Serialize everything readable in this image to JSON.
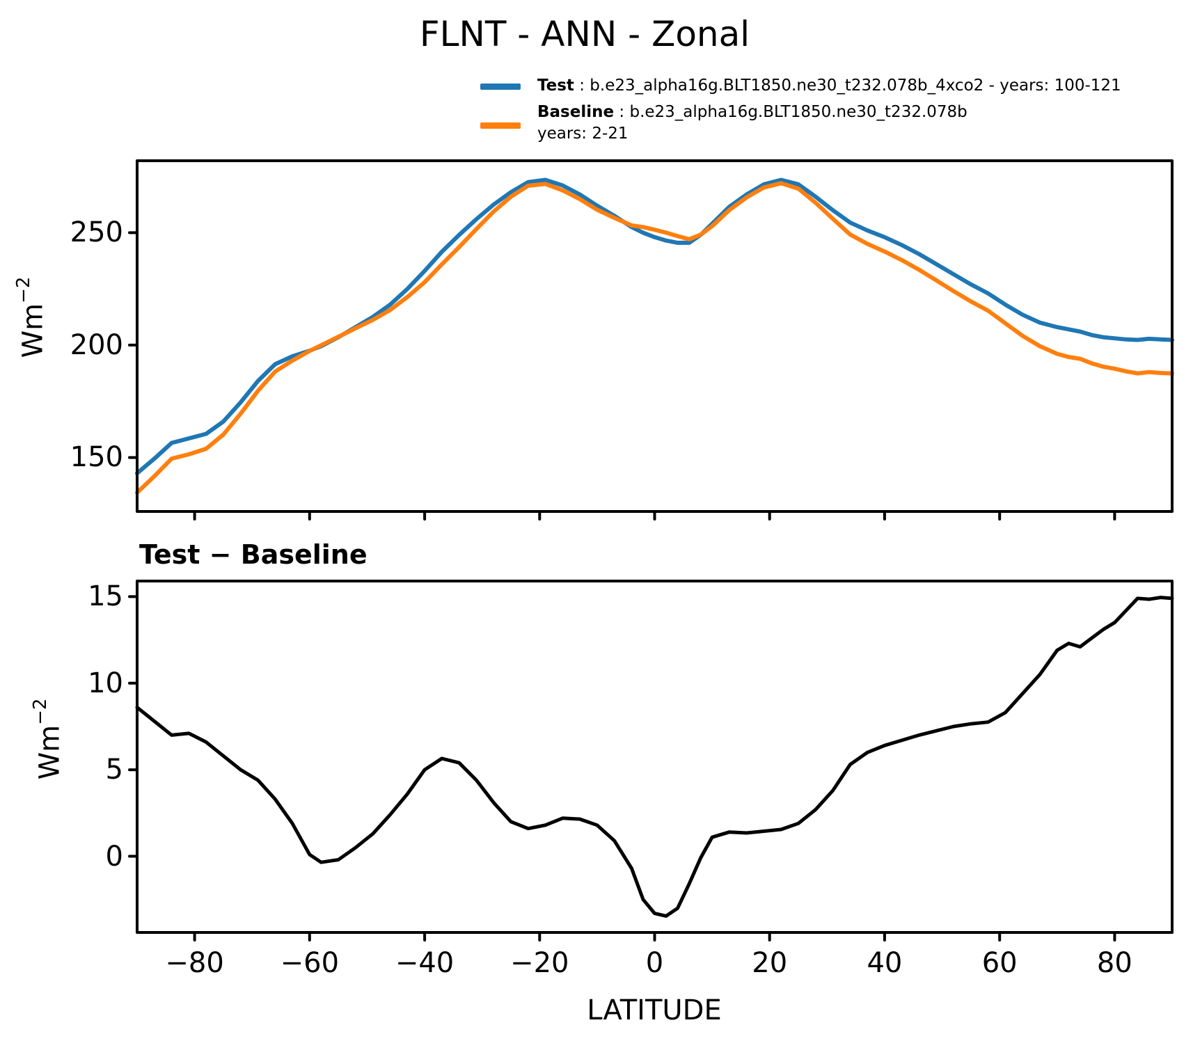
{
  "title": "FLNT - ANN - Zonal",
  "colors": {
    "test": "#1f77b4",
    "baseline": "#ff7f0e",
    "diff": "#000000",
    "axis": "#000000"
  },
  "legend": {
    "test_label": "Test",
    "test_desc": " : b.e23_alpha16g.BLT1850.ne30_t232.078b_4xco2 - years: 100-121",
    "baseline_label": "Baseline",
    "baseline_desc": " : b.e23_alpha16g.BLT1850.ne30_t232.078b",
    "baseline_years": "years: 2-21"
  },
  "top_chart": {
    "ylabel_base": "Wm",
    "ylabel_exp": "−2"
  },
  "diff_chart": {
    "title": "Test − Baseline",
    "ylabel_base": "Wm",
    "ylabel_exp": "−2",
    "xlabel": "LATITUDE"
  },
  "chart_data": [
    {
      "type": "line",
      "title": "FLNT - ANN - Zonal",
      "ylabel": "Wm-2",
      "xlim": [
        -90,
        90
      ],
      "ylim": [
        126,
        282
      ],
      "yticks": [
        150,
        200,
        250
      ],
      "xticks": [
        -80,
        -60,
        -40,
        -20,
        0,
        20,
        40,
        60,
        80
      ],
      "xticklabels": false,
      "grid": false,
      "legend_position": "above-right",
      "x": [
        -90,
        -87,
        -84,
        -81,
        -78,
        -75,
        -72,
        -69,
        -66,
        -63,
        -60,
        -58,
        -55,
        -52,
        -49,
        -46,
        -43,
        -40,
        -37,
        -34,
        -31,
        -28,
        -25,
        -22,
        -19,
        -16,
        -13,
        -10,
        -7,
        -4,
        -2,
        0,
        2,
        4,
        6,
        8,
        10,
        13,
        16,
        19,
        22,
        25,
        28,
        31,
        34,
        37,
        40,
        43,
        46,
        49,
        52,
        55,
        58,
        61,
        64,
        67,
        70,
        72,
        74,
        76,
        78,
        80,
        82,
        84,
        86,
        88,
        90
      ],
      "series": [
        {
          "name": "Test",
          "color": "test",
          "values": [
            143,
            149.5,
            156.5,
            158.5,
            160.5,
            166,
            174.5,
            184,
            191.5,
            195,
            197.5,
            199.5,
            203.5,
            208,
            212.5,
            218,
            225,
            233,
            241.5,
            249,
            256,
            262.5,
            268,
            272.5,
            273.5,
            271,
            267,
            262,
            257.5,
            252.5,
            250,
            248,
            246.5,
            245.5,
            245.5,
            249,
            254,
            261.5,
            267,
            271.5,
            273.5,
            271.5,
            266,
            260,
            254.5,
            251,
            248,
            244.5,
            240.5,
            236,
            231.5,
            227,
            223,
            218,
            213.5,
            210,
            208,
            207,
            206,
            204.5,
            203.5,
            203,
            202.5,
            202.3,
            202.8,
            202.5,
            202.3
          ]
        },
        {
          "name": "Baseline",
          "color": "baseline",
          "values": [
            134.4,
            141.7,
            149.5,
            151.4,
            153.9,
            160.2,
            169.5,
            179.6,
            188.2,
            193.1,
            197.4,
            199.9,
            203.7,
            207.5,
            211.2,
            215.6,
            221.4,
            228,
            235.9,
            243.6,
            251.6,
            259.4,
            266,
            270.9,
            271.7,
            268.8,
            264.9,
            260.2,
            256.6,
            253.2,
            252.5,
            251.3,
            250,
            248.5,
            247.1,
            249.1,
            252.9,
            260.1,
            265.7,
            270.1,
            272,
            269.6,
            263.3,
            256.2,
            249.2,
            245,
            241.6,
            237.8,
            233.5,
            228.8,
            224,
            219.4,
            215.3,
            209.7,
            204.1,
            199.5,
            196.1,
            194.7,
            193.9,
            191.9,
            190.4,
            189.5,
            188.3,
            187.4,
            188,
            187.6,
            187.4
          ]
        }
      ]
    },
    {
      "type": "line",
      "title": "Test − Baseline",
      "ylabel": "Wm-2",
      "xlabel": "LATITUDE",
      "xlim": [
        -90,
        90
      ],
      "ylim": [
        -4.4,
        15.9
      ],
      "yticks": [
        0,
        5,
        10,
        15
      ],
      "xticks": [
        -80,
        -60,
        -40,
        -20,
        0,
        20,
        40,
        60,
        80
      ],
      "xticklabels": true,
      "grid": false,
      "x": [
        -90,
        -87,
        -84,
        -81,
        -78,
        -75,
        -72,
        -69,
        -66,
        -63,
        -60,
        -58,
        -55,
        -52,
        -49,
        -46,
        -43,
        -40,
        -37,
        -34,
        -31,
        -28,
        -25,
        -22,
        -19,
        -16,
        -13,
        -10,
        -7,
        -4,
        -2,
        0,
        2,
        4,
        6,
        8,
        10,
        13,
        16,
        19,
        22,
        25,
        28,
        31,
        34,
        37,
        40,
        43,
        46,
        49,
        52,
        55,
        58,
        61,
        64,
        67,
        70,
        72,
        74,
        76,
        78,
        80,
        82,
        84,
        86,
        88,
        90
      ],
      "series": [
        {
          "name": "Test - Baseline",
          "color": "diff",
          "values": [
            8.6,
            7.8,
            7,
            7.1,
            6.6,
            5.8,
            5,
            4.4,
            3.3,
            1.9,
            0.1,
            -0.35,
            -0.2,
            0.5,
            1.3,
            2.4,
            3.6,
            5,
            5.65,
            5.4,
            4.4,
            3.1,
            2,
            1.6,
            1.8,
            2.2,
            2.15,
            1.8,
            0.9,
            -0.7,
            -2.5,
            -3.3,
            -3.45,
            -3,
            -1.6,
            -0.1,
            1.1,
            1.4,
            1.35,
            1.45,
            1.55,
            1.9,
            2.7,
            3.8,
            5.3,
            6,
            6.4,
            6.7,
            7,
            7.25,
            7.5,
            7.65,
            7.75,
            8.3,
            9.4,
            10.5,
            11.9,
            12.3,
            12.1,
            12.6,
            13.1,
            13.5,
            14.2,
            14.9,
            14.85,
            14.95,
            14.9
          ]
        }
      ]
    }
  ]
}
